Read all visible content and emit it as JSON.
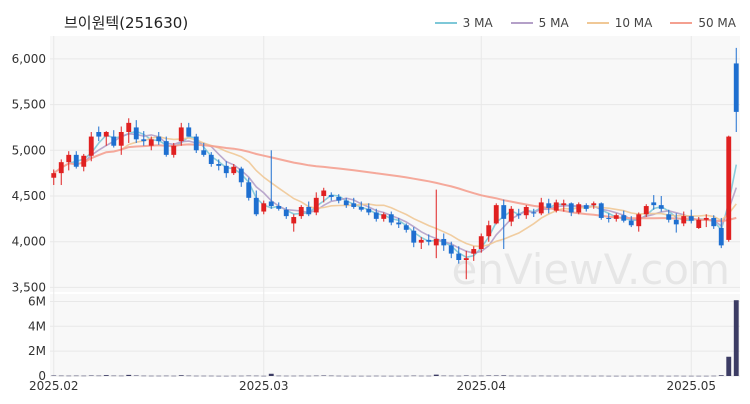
{
  "title": "브이원텍(251630)",
  "watermark": "enViewV.com",
  "legend": [
    {
      "label": "3 MA",
      "color": "#7ec8d8"
    },
    {
      "label": "5 MA",
      "color": "#b4a0c8"
    },
    {
      "label": "10 MA",
      "color": "#f0c896"
    },
    {
      "label": "50 MA",
      "color": "#f4a090"
    }
  ],
  "colors": {
    "up": "#e02020",
    "down": "#1e6fd0",
    "volume": "#3c3c64",
    "grid": "#e8e8e8",
    "panel_bg": "#f8f8f8"
  },
  "chart_data": {
    "type": "candlestick",
    "price_axis": {
      "ylim": [
        3450,
        6250
      ],
      "ticks": [
        "3,500",
        "4,000",
        "4,500",
        "5,000",
        "5,500",
        "6,000"
      ],
      "tick_values": [
        3500,
        4000,
        4500,
        5000,
        5500,
        6000
      ]
    },
    "volume_axis": {
      "ylim": [
        0,
        6600000
      ],
      "ticks": [
        "0",
        "2M",
        "4M",
        "6M"
      ],
      "tick_values": [
        0,
        2000000,
        4000000,
        6000000
      ]
    },
    "x_ticks": [
      {
        "label": "2025.02",
        "index": 0
      },
      {
        "label": "2025.03",
        "index": 28
      },
      {
        "label": "2025.04",
        "index": 57
      },
      {
        "label": "2025.05",
        "index": 85
      }
    ],
    "candles": [
      [
        4700,
        4790,
        4620,
        4750
      ],
      [
        4750,
        4900,
        4620,
        4870
      ],
      [
        4870,
        4990,
        4780,
        4950
      ],
      [
        4950,
        4990,
        4800,
        4820
      ],
      [
        4820,
        4960,
        4770,
        4940
      ],
      [
        4940,
        5200,
        4880,
        5150
      ],
      [
        5200,
        5260,
        5100,
        5150
      ],
      [
        5150,
        5210,
        5050,
        5200
      ],
      [
        5150,
        5220,
        5030,
        5050
      ],
      [
        5050,
        5260,
        4950,
        5200
      ],
      [
        5200,
        5350,
        5080,
        5300
      ],
      [
        5250,
        5330,
        5080,
        5120
      ],
      [
        5120,
        5210,
        5050,
        5100
      ],
      [
        5050,
        5150,
        5000,
        5120
      ],
      [
        5150,
        5200,
        5060,
        5100
      ],
      [
        5100,
        5150,
        4930,
        4950
      ],
      [
        4950,
        5080,
        4920,
        5050
      ],
      [
        5100,
        5300,
        5050,
        5250
      ],
      [
        5250,
        5300,
        5150,
        5150
      ],
      [
        5150,
        5180,
        4970,
        5000
      ],
      [
        5000,
        5080,
        4930,
        4950
      ],
      [
        4950,
        4980,
        4820,
        4850
      ],
      [
        4850,
        4900,
        4780,
        4830
      ],
      [
        4830,
        4880,
        4700,
        4750
      ],
      [
        4750,
        4850,
        4730,
        4820
      ],
      [
        4800,
        4820,
        4600,
        4650
      ],
      [
        4650,
        4700,
        4450,
        4480
      ],
      [
        4480,
        4560,
        4280,
        4300
      ],
      [
        4330,
        4450,
        4300,
        4420
      ],
      [
        4440,
        5000,
        4360,
        4390
      ],
      [
        4390,
        4430,
        4340,
        4360
      ],
      [
        4350,
        4380,
        4250,
        4280
      ],
      [
        4200,
        4300,
        4110,
        4270
      ],
      [
        4280,
        4400,
        4250,
        4380
      ],
      [
        4380,
        4440,
        4280,
        4300
      ],
      [
        4320,
        4540,
        4290,
        4480
      ],
      [
        4500,
        4590,
        4430,
        4560
      ],
      [
        4510,
        4540,
        4450,
        4490
      ],
      [
        4490,
        4520,
        4420,
        4450
      ],
      [
        4450,
        4480,
        4370,
        4400
      ],
      [
        4420,
        4480,
        4360,
        4380
      ],
      [
        4380,
        4440,
        4330,
        4350
      ],
      [
        4360,
        4420,
        4290,
        4320
      ],
      [
        4320,
        4360,
        4220,
        4250
      ],
      [
        4250,
        4320,
        4220,
        4300
      ],
      [
        4300,
        4330,
        4180,
        4210
      ],
      [
        4210,
        4260,
        4150,
        4190
      ],
      [
        4180,
        4200,
        4100,
        4130
      ],
      [
        4120,
        4160,
        3940,
        3990
      ],
      [
        3990,
        4050,
        3920,
        4020
      ],
      [
        4020,
        4080,
        3960,
        4000
      ],
      [
        3960,
        4570,
        3820,
        4030
      ],
      [
        4030,
        4090,
        3900,
        3960
      ],
      [
        3960,
        4000,
        3820,
        3870
      ],
      [
        3870,
        3950,
        3760,
        3800
      ],
      [
        3800,
        3900,
        3590,
        3820
      ],
      [
        3870,
        3950,
        3790,
        3920
      ],
      [
        3920,
        4090,
        3880,
        4060
      ],
      [
        4060,
        4230,
        4000,
        4180
      ],
      [
        4200,
        4420,
        4190,
        4400
      ],
      [
        4400,
        4460,
        3920,
        4250
      ],
      [
        4220,
        4390,
        4170,
        4360
      ],
      [
        4300,
        4360,
        4250,
        4290
      ],
      [
        4290,
        4400,
        4250,
        4380
      ],
      [
        4320,
        4360,
        4270,
        4310
      ],
      [
        4310,
        4480,
        4290,
        4430
      ],
      [
        4420,
        4470,
        4310,
        4370
      ],
      [
        4340,
        4460,
        4320,
        4430
      ],
      [
        4400,
        4460,
        4330,
        4420
      ],
      [
        4420,
        4430,
        4280,
        4320
      ],
      [
        4320,
        4430,
        4300,
        4410
      ],
      [
        4400,
        4420,
        4330,
        4360
      ],
      [
        4400,
        4440,
        4360,
        4420
      ],
      [
        4420,
        4430,
        4240,
        4260
      ],
      [
        4260,
        4310,
        4210,
        4250
      ],
      [
        4250,
        4310,
        4220,
        4290
      ],
      [
        4290,
        4340,
        4210,
        4230
      ],
      [
        4230,
        4280,
        4160,
        4180
      ],
      [
        4170,
        4320,
        4110,
        4300
      ],
      [
        4300,
        4410,
        4270,
        4390
      ],
      [
        4430,
        4510,
        4350,
        4400
      ],
      [
        4400,
        4500,
        4330,
        4360
      ],
      [
        4300,
        4350,
        4210,
        4240
      ],
      [
        4240,
        4310,
        4100,
        4190
      ],
      [
        4200,
        4330,
        4170,
        4280
      ],
      [
        4280,
        4350,
        4200,
        4230
      ],
      [
        4150,
        4270,
        4140,
        4240
      ],
      [
        4240,
        4300,
        4160,
        4260
      ],
      [
        4260,
        4290,
        4140,
        4170
      ],
      [
        4150,
        4260,
        3930,
        3960
      ],
      [
        4020,
        5160,
        4000,
        5150
      ],
      [
        5950,
        6120,
        5200,
        5420
      ]
    ],
    "volumes": [
      40000,
      30000,
      25000,
      30000,
      25000,
      40000,
      30000,
      70000,
      30000,
      25000,
      90000,
      40000,
      25000,
      20000,
      20000,
      25000,
      20000,
      60000,
      30000,
      20000,
      20000,
      20000,
      15000,
      15000,
      20000,
      20000,
      30000,
      25000,
      15000,
      180000,
      25000,
      20000,
      20000,
      25000,
      20000,
      30000,
      40000,
      30000,
      20000,
      15000,
      15000,
      15000,
      15000,
      20000,
      15000,
      15000,
      15000,
      20000,
      30000,
      20000,
      20000,
      110000,
      30000,
      25000,
      20000,
      40000,
      20000,
      25000,
      40000,
      40000,
      50000,
      25000,
      20000,
      20000,
      20000,
      25000,
      20000,
      20000,
      20000,
      20000,
      20000,
      20000,
      15000,
      20000,
      15000,
      15000,
      15000,
      15000,
      20000,
      20000,
      20000,
      20000,
      15000,
      20000,
      15000,
      15000,
      15000,
      15000,
      20000,
      60000,
      1550000,
      6100000
    ]
  }
}
